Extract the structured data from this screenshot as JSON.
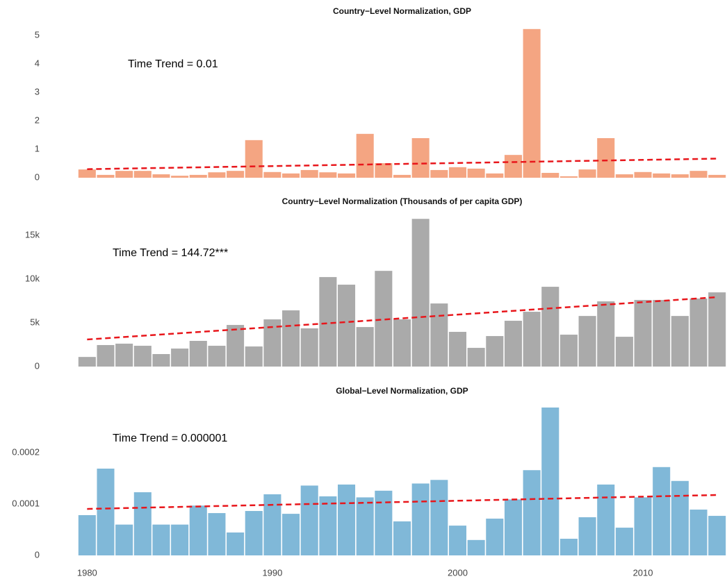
{
  "chart_data": [
    {
      "type": "bar",
      "title": "Country−Level Normalization, GDP",
      "annotation": "Time Trend = 0.01",
      "color": "#f4a582",
      "x": [
        1980,
        1981,
        1982,
        1983,
        1984,
        1985,
        1986,
        1987,
        1988,
        1989,
        1990,
        1991,
        1992,
        1993,
        1994,
        1995,
        1996,
        1997,
        1998,
        1999,
        2000,
        2001,
        2002,
        2003,
        2004,
        2005,
        2006,
        2007,
        2008,
        2009,
        2010,
        2011,
        2012,
        2013,
        2014
      ],
      "values": [
        0.29,
        0.1,
        0.24,
        0.24,
        0.12,
        0.07,
        0.1,
        0.19,
        0.24,
        1.32,
        0.2,
        0.15,
        0.27,
        0.19,
        0.15,
        1.54,
        0.51,
        0.1,
        1.39,
        0.27,
        0.37,
        0.32,
        0.15,
        0.8,
        5.22,
        0.17,
        0.05,
        0.29,
        1.39,
        0.12,
        0.2,
        0.15,
        0.12,
        0.24,
        0.1
      ],
      "trend": {
        "x": [
          1980,
          2014
        ],
        "values": [
          0.3,
          0.67
        ],
        "color": "#e8161b"
      },
      "xlim": [
        1979.5,
        2014.5
      ],
      "ylim": [
        0,
        5.24
      ],
      "yticks": [
        0,
        1,
        2,
        3,
        4,
        5
      ]
    },
    {
      "type": "bar",
      "title": "Country−Level Normalization (Thousands of per capita GDP)",
      "annotation": "Time Trend = 144.72***",
      "color": "#aaaaaa",
      "x": [
        1980,
        1981,
        1982,
        1983,
        1984,
        1985,
        1986,
        1987,
        1988,
        1989,
        1990,
        1991,
        1992,
        1993,
        1994,
        1995,
        1996,
        1997,
        1998,
        1999,
        2000,
        2001,
        2002,
        2003,
        2004,
        2005,
        2006,
        2007,
        2008,
        2009,
        2010,
        2011,
        2012,
        2013,
        2014
      ],
      "values": [
        1100,
        2460,
        2620,
        2380,
        1430,
        2060,
        2940,
        2380,
        4760,
        2300,
        5400,
        6430,
        4370,
        10240,
        9370,
        4520,
        10950,
        5400,
        16900,
        7220,
        3970,
        2140,
        3490,
        5240,
        6270,
        9130,
        3650,
        5790,
        7460,
        3410,
        7620,
        7620,
        5790,
        7780,
        8490
      ],
      "trend": {
        "x": [
          1980,
          2014
        ],
        "values": [
          3100,
          7940
        ],
        "color": "#e8161b"
      },
      "xlim": [
        1979.5,
        2014.5
      ],
      "ylim": [
        0,
        17000
      ],
      "yticks": [
        0,
        {
          "value": 5000,
          "label": "5k"
        },
        {
          "value": 10000,
          "label": "10k"
        },
        {
          "value": 15000,
          "label": "15k"
        }
      ]
    },
    {
      "type": "bar",
      "title": "Global−Level Normalization, GDP",
      "annotation": "Time Trend = 0.000001",
      "color": "#80b8d8",
      "x": [
        1980,
        1981,
        1982,
        1983,
        1984,
        1985,
        1986,
        1987,
        1988,
        1989,
        1990,
        1991,
        1992,
        1993,
        1994,
        1995,
        1996,
        1997,
        1998,
        1999,
        2000,
        2001,
        2002,
        2003,
        2004,
        2005,
        2006,
        2007,
        2008,
        2009,
        2010,
        2011,
        2012,
        2013,
        2014
      ],
      "values": [
        7.84e-05,
        0.000169,
        6e-05,
        0.000123,
        6e-05,
        6e-05,
        9.7e-05,
        8.24e-05,
        4.46e-05,
        8.65e-05,
        0.000119,
        8.1e-05,
        0.000136,
        0.000115,
        0.000138,
        0.000113,
        0.000126,
        6.62e-05,
        0.00014,
        0.000147,
        5.8e-05,
        3e-05,
        7.16e-05,
        0.000109,
        0.000166,
        0.000288,
        3.24e-05,
        7.43e-05,
        0.000138,
        5.4e-05,
        0.000113,
        0.000172,
        0.000145,
        8.92e-05,
        7.7e-05
      ],
      "trend": {
        "x": [
          1980,
          2014
        ],
        "values": [
          9.05e-05,
          0.0001176
        ],
        "color": "#e8161b"
      },
      "xlim": [
        1979.5,
        2014.5
      ],
      "ylim": [
        0,
        0.000288
      ],
      "yticks": [
        0,
        0.0001,
        0.0002
      ],
      "xticks": [
        1980,
        1990,
        2000,
        2010
      ]
    }
  ]
}
